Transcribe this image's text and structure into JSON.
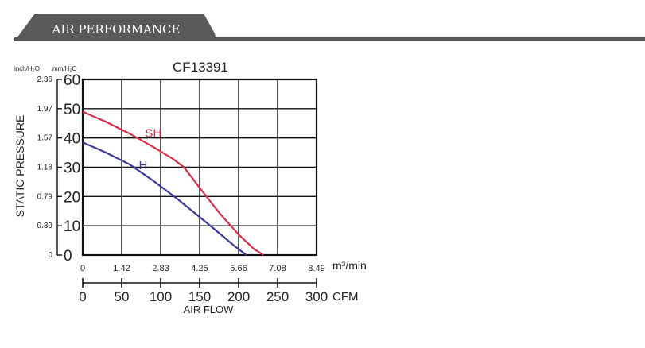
{
  "header": {
    "title": "AIR PERFORMANCE",
    "colors": {
      "tab": "#5a5a5a",
      "line": "#5a5a5a",
      "text": "#ffffff"
    }
  },
  "chart_data": {
    "type": "line",
    "title": "CF13391",
    "ylabel": "STATIC PRESSURE",
    "xlabel": "AIR FLOW",
    "y_unit_left": "inch/H₂O",
    "y_unit_right": "mm/H₂O",
    "x_unit_top": "m³/min",
    "x_unit_bottom": "CFM",
    "xlim": [
      0,
      300
    ],
    "ylim": [
      0,
      60
    ],
    "grid": true,
    "x_ticks_cfm": [
      "0",
      "50",
      "100",
      "150",
      "200",
      "250",
      "300"
    ],
    "x_ticks_m3min": [
      "0",
      "1.42",
      "2.83",
      "4.25",
      "5.66",
      "7.08",
      "8.49"
    ],
    "y_ticks_mm": [
      "0",
      "10",
      "20",
      "30",
      "40",
      "50",
      "60"
    ],
    "y_ticks_inch": [
      "0",
      "0.39",
      "0.79",
      "1.18",
      "1.57",
      "1.97",
      "2.36"
    ],
    "series": [
      {
        "name": "SH",
        "color": "#d9304a",
        "x": [
          0,
          30,
          60,
          90,
          115,
          130,
          150,
          175,
          200,
          220,
          232
        ],
        "y": [
          49,
          45.5,
          41.5,
          37,
          33,
          30,
          23,
          14.5,
          7,
          2,
          0
        ]
      },
      {
        "name": "H",
        "color": "#3a3a9e",
        "x": [
          0,
          30,
          60,
          90,
          120,
          150,
          175,
          195,
          210
        ],
        "y": [
          38.5,
          35,
          31,
          25.5,
          19.5,
          13,
          7.5,
          3,
          0
        ]
      }
    ]
  }
}
